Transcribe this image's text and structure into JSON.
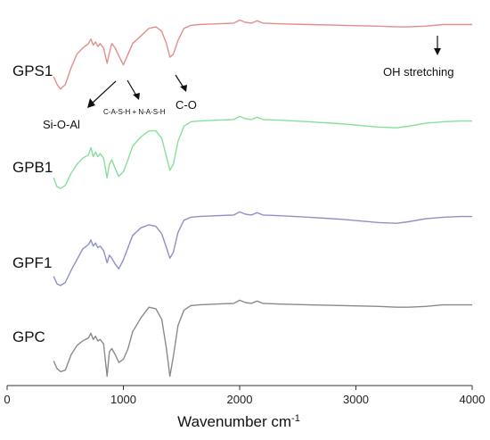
{
  "chart_data": {
    "type": "line",
    "title": "",
    "xlabel": "Wavenumber cm",
    "xlabel_sup": "-1",
    "ylabel": "",
    "xlim": [
      0,
      4000
    ],
    "x_ticks": [
      0,
      1000,
      2000,
      3000,
      4000
    ],
    "grid": false,
    "x": [
      400,
      430,
      460,
      500,
      550,
      600,
      650,
      700,
      720,
      740,
      760,
      780,
      800,
      830,
      860,
      880,
      900,
      930,
      960,
      1000,
      1040,
      1080,
      1150,
      1220,
      1280,
      1330,
      1370,
      1400,
      1430,
      1470,
      1520,
      1580,
      1650,
      1800,
      1950,
      2000,
      2050,
      2100,
      2150,
      2200,
      2350,
      2600,
      2900,
      3200,
      3350,
      3450,
      3600,
      3750,
      3900,
      4000
    ],
    "series": [
      {
        "name": "GPS1",
        "color": "#e08f8a",
        "values": [
          28,
          18,
          12,
          18,
          40,
          58,
          66,
          72,
          78,
          70,
          74,
          68,
          72,
          66,
          46,
          60,
          72,
          66,
          56,
          44,
          58,
          72,
          82,
          92,
          94,
          88,
          72,
          54,
          58,
          76,
          92,
          96,
          97,
          98,
          99,
          103,
          100,
          99,
          102,
          99,
          98,
          97,
          96,
          95,
          94,
          94,
          95,
          97,
          97,
          97
        ]
      },
      {
        "name": "GPB1",
        "color": "#86e09a",
        "values": [
          22,
          10,
          8,
          12,
          28,
          40,
          48,
          52,
          62,
          50,
          56,
          50,
          54,
          48,
          22,
          40,
          46,
          34,
          24,
          30,
          46,
          64,
          76,
          84,
          84,
          74,
          50,
          32,
          40,
          70,
          90,
          96,
          97,
          98,
          99,
          103,
          100,
          99,
          102,
          99,
          98,
          96,
          93,
          89,
          88,
          90,
          94,
          96,
          97,
          97
        ]
      },
      {
        "name": "GPF1",
        "color": "#8f8fc8",
        "values": [
          18,
          8,
          6,
          10,
          26,
          40,
          54,
          60,
          66,
          58,
          62,
          56,
          58,
          52,
          36,
          46,
          42,
          34,
          28,
          40,
          56,
          72,
          82,
          86,
          84,
          74,
          56,
          42,
          50,
          76,
          92,
          96,
          97,
          98,
          99,
          103,
          100,
          99,
          102,
          99,
          98,
          96,
          93,
          89,
          88,
          90,
          94,
          96,
          97,
          97
        ]
      },
      {
        "name": "GPC",
        "color": "#8a8a8a",
        "values": [
          24,
          14,
          10,
          12,
          32,
          44,
          50,
          54,
          60,
          52,
          56,
          50,
          52,
          46,
          4,
          36,
          40,
          32,
          22,
          26,
          40,
          62,
          80,
          94,
          92,
          78,
          40,
          4,
          30,
          70,
          90,
          96,
          97,
          98,
          99,
          103,
          100,
          99,
          102,
          99,
          98,
          97,
          96,
          95,
          94,
          94,
          95,
          97,
          97,
          97
        ]
      }
    ],
    "annotations": {
      "oh": "OH stretching",
      "sioal": "Si-O-Al",
      "cash": "C-A-S-H + N-A-S-H",
      "co": "C-O"
    }
  },
  "colors": {
    "axis": "#333333"
  }
}
